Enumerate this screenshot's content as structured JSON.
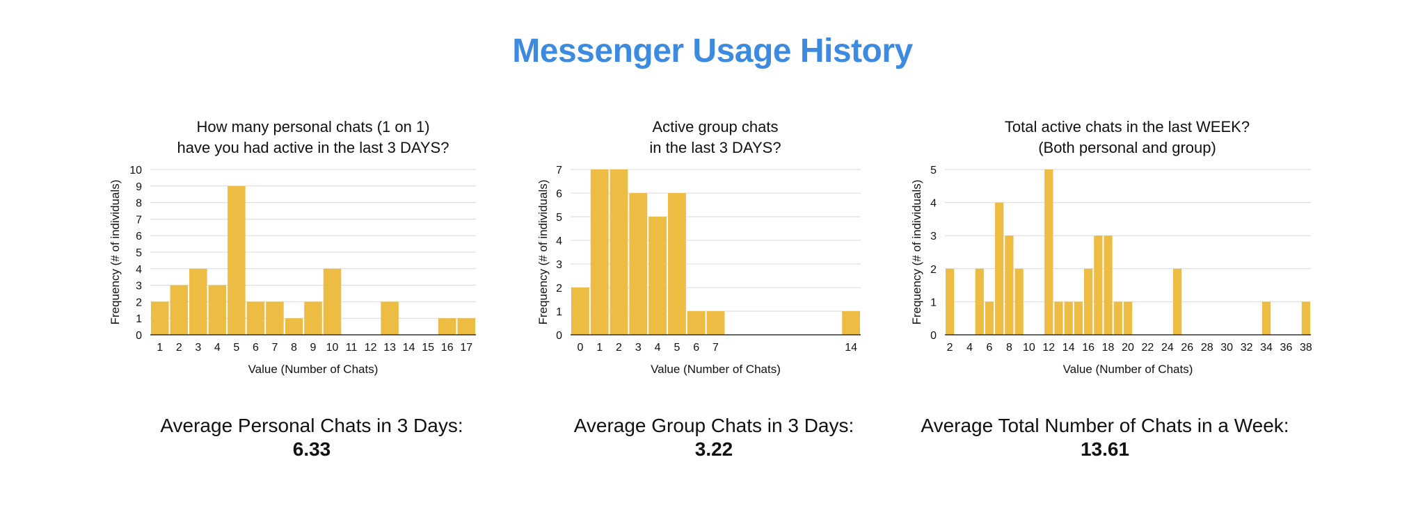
{
  "page": {
    "title": "Messenger Usage History"
  },
  "colors": {
    "title": "#3d8be0",
    "bar": "#ecbc43",
    "grid": "#d9d9d9",
    "axis": "#333333"
  },
  "averages": [
    {
      "label": "Average Personal Chats in 3 Days:",
      "value": "6.33"
    },
    {
      "label": "Average Group Chats in 3 Days:",
      "value": "3.22"
    },
    {
      "label": "Average Total Number of Chats in a Week:",
      "value": "13.61"
    }
  ],
  "chart_data": [
    {
      "type": "bar",
      "title": [
        "How many personal chats (1 on 1)",
        "have you had active in the last 3 DAYS?"
      ],
      "xlabel": "Value (Number of Chats)",
      "ylabel": "Frequency (# of individuals)",
      "ylim": [
        0,
        10
      ],
      "yticks": [
        0,
        1,
        2,
        3,
        4,
        5,
        6,
        7,
        8,
        9,
        10
      ],
      "grid": true,
      "categories": [
        "1",
        "2",
        "3",
        "4",
        "5",
        "6",
        "7",
        "8",
        "9",
        "10",
        "11",
        "12",
        "13",
        "14",
        "15",
        "16",
        "17"
      ],
      "values": [
        2,
        3,
        4,
        3,
        9,
        2,
        2,
        1,
        2,
        4,
        0,
        0,
        2,
        0,
        0,
        1,
        1
      ]
    },
    {
      "type": "bar",
      "title": [
        "Active group chats",
        "in the last 3 DAYS?"
      ],
      "xlabel": "Value (Number of Chats)",
      "ylabel": "Frequency (# of individuals)",
      "ylim": [
        0,
        7
      ],
      "yticks": [
        0,
        1,
        2,
        3,
        4,
        5,
        6,
        7
      ],
      "grid": true,
      "categories": [
        "0",
        "1",
        "2",
        "3",
        "4",
        "5",
        "6",
        "7",
        "8",
        "9",
        "10",
        "11",
        "12",
        "13",
        "14"
      ],
      "tick_labels": [
        "0",
        "1",
        "2",
        "3",
        "4",
        "5",
        "6",
        "7",
        "",
        "",
        "",
        "",
        "",
        "",
        "14"
      ],
      "values": [
        2,
        7,
        7,
        6,
        5,
        6,
        1,
        1,
        0,
        0,
        0,
        0,
        0,
        0,
        1
      ]
    },
    {
      "type": "bar",
      "title": [
        "Total active chats in the last WEEK?",
        "(Both personal and group)"
      ],
      "xlabel": "Value (Number of Chats)",
      "ylabel": "Frequency (# of individuals)",
      "ylim": [
        0,
        5
      ],
      "yticks": [
        0,
        1,
        2,
        3,
        4,
        5
      ],
      "grid": true,
      "categories": [
        "2",
        "3",
        "4",
        "5",
        "6",
        "7",
        "8",
        "9",
        "10",
        "11",
        "12",
        "13",
        "14",
        "15",
        "16",
        "17",
        "18",
        "19",
        "20",
        "21",
        "22",
        "23",
        "24",
        "25",
        "26",
        "27",
        "28",
        "29",
        "30",
        "31",
        "32",
        "33",
        "34",
        "35",
        "36",
        "37",
        "38"
      ],
      "tick_labels": [
        "2",
        "",
        "4",
        "",
        "6",
        "",
        "8",
        "",
        "10",
        "",
        "12",
        "",
        "14",
        "",
        "16",
        "",
        "18",
        "",
        "20",
        "",
        "22",
        "",
        "24",
        "",
        "26",
        "",
        "28",
        "",
        "30",
        "",
        "32",
        "",
        "34",
        "",
        "36",
        "",
        "38"
      ],
      "values": [
        2,
        0,
        0,
        2,
        1,
        4,
        3,
        2,
        0,
        0,
        5,
        1,
        1,
        1,
        2,
        3,
        3,
        1,
        1,
        0,
        0,
        0,
        0,
        2,
        0,
        0,
        0,
        0,
        0,
        0,
        0,
        0,
        1,
        0,
        0,
        0,
        1
      ]
    }
  ]
}
